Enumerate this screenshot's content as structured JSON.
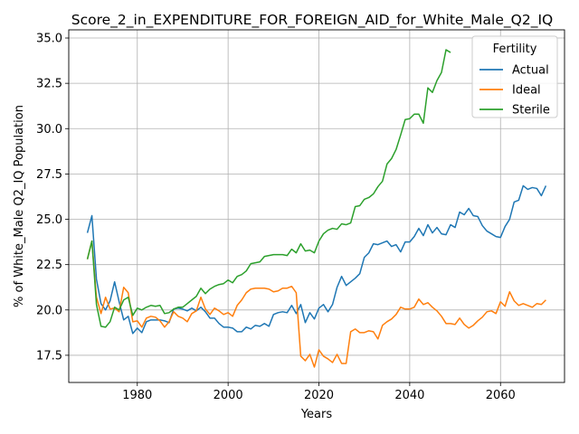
{
  "chart_data": {
    "type": "line",
    "title": "Score_2_in_EXPENDITURE_FOR_FOREIGN_AID_for_White_Male_Q2_IQ",
    "xlabel": "Years",
    "ylabel": "% of White_Male Q2_IQ Population",
    "xlim": [
      1964.9,
      2074.1
    ],
    "ylim": [
      16.0,
      35.45
    ],
    "xticks": [
      1980,
      2000,
      2020,
      2040,
      2060
    ],
    "yticks": [
      17.5,
      20.0,
      22.5,
      25.0,
      27.5,
      30.0,
      32.5,
      35.0
    ],
    "ytick_labels": [
      "17.5",
      "20.0",
      "22.5",
      "25.0",
      "27.5",
      "30.0",
      "32.5",
      "35.0"
    ],
    "grid": true,
    "legend": {
      "title": "Fertility",
      "position": "top-right"
    },
    "series": [
      {
        "name": "Actual",
        "color": "#1f77b4",
        "x": [
          1969,
          1970,
          1971,
          1972,
          1973,
          1974,
          1975,
          1976,
          1977,
          1978,
          1979,
          1980,
          1981,
          1982,
          1983,
          1984,
          1985,
          1986,
          1987,
          1988,
          1989,
          1990,
          1991,
          1992,
          1993,
          1994,
          1995,
          1996,
          1997,
          1998,
          1999,
          2000,
          2001,
          2002,
          2003,
          2004,
          2005,
          2006,
          2007,
          2008,
          2009,
          2010,
          2011,
          2012,
          2013,
          2014,
          2015,
          2016,
          2017,
          2018,
          2019,
          2020,
          2021,
          2022,
          2023,
          2024,
          2025,
          2026,
          2027,
          2028,
          2029,
          2030,
          2031,
          2032,
          2033,
          2034,
          2035,
          2036,
          2037,
          2038,
          2039,
          2040,
          2041,
          2042,
          2043,
          2044,
          2045,
          2046,
          2047,
          2048,
          2049,
          2050,
          2051,
          2052,
          2053,
          2054,
          2055,
          2056,
          2057,
          2058,
          2059,
          2060,
          2061,
          2062,
          2063,
          2064,
          2065,
          2066,
          2067,
          2068,
          2069,
          2070
        ],
        "values": [
          24.25,
          25.2,
          21.7,
          20.35,
          20.0,
          20.5,
          21.55,
          20.45,
          19.45,
          19.65,
          18.7,
          19.0,
          18.75,
          19.35,
          19.45,
          19.45,
          19.45,
          19.4,
          19.3,
          20.05,
          20.1,
          20.05,
          19.95,
          20.1,
          19.95,
          20.15,
          19.9,
          19.55,
          19.55,
          19.25,
          19.05,
          19.05,
          19.0,
          18.8,
          18.8,
          19.05,
          18.95,
          19.15,
          19.1,
          19.25,
          19.1,
          19.75,
          19.85,
          19.9,
          19.85,
          20.25,
          19.8,
          20.3,
          19.3,
          19.85,
          19.5,
          20.1,
          20.3,
          19.9,
          20.3,
          21.25,
          21.85,
          21.35,
          21.55,
          21.75,
          22.0,
          22.9,
          23.15,
          23.65,
          23.6,
          23.7,
          23.8,
          23.5,
          23.6,
          23.2,
          23.75,
          23.75,
          24.05,
          24.5,
          24.1,
          24.7,
          24.25,
          24.55,
          24.2,
          24.15,
          24.7,
          24.55,
          25.4,
          25.25,
          25.6,
          25.2,
          25.15,
          24.65,
          24.35,
          24.2,
          24.05,
          24.0,
          24.6,
          25.0,
          25.95,
          26.05,
          26.85,
          26.65,
          26.75,
          26.7,
          26.3,
          26.85
        ]
      },
      {
        "name": "Ideal",
        "color": "#ff7f0e",
        "x": [
          1969,
          1970,
          1971,
          1972,
          1973,
          1974,
          1975,
          1976,
          1977,
          1978,
          1979,
          1980,
          1981,
          1982,
          1983,
          1984,
          1985,
          1986,
          1987,
          1988,
          1989,
          1990,
          1991,
          1992,
          1993,
          1994,
          1995,
          1996,
          1997,
          1998,
          1999,
          2000,
          2001,
          2002,
          2003,
          2004,
          2005,
          2006,
          2007,
          2008,
          2009,
          2010,
          2011,
          2012,
          2013,
          2014,
          2015,
          2016,
          2017,
          2018,
          2019,
          2020,
          2021,
          2022,
          2023,
          2024,
          2025,
          2026,
          2027,
          2028,
          2029,
          2030,
          2031,
          2032,
          2033,
          2034,
          2035,
          2036,
          2037,
          2038,
          2039,
          2040,
          2041,
          2042,
          2043,
          2044,
          2045,
          2046,
          2047,
          2048,
          2049,
          2050,
          2051,
          2052,
          2053,
          2054,
          2055,
          2056,
          2057,
          2058,
          2059,
          2060,
          2061,
          2062,
          2063,
          2064,
          2065,
          2066,
          2067,
          2068,
          2069,
          2070
        ],
        "values": [
          22.8,
          23.8,
          20.7,
          19.8,
          20.7,
          20.05,
          20.1,
          19.9,
          21.25,
          20.95,
          19.35,
          19.4,
          19.05,
          19.55,
          19.65,
          19.6,
          19.4,
          19.05,
          19.35,
          19.9,
          19.65,
          19.55,
          19.35,
          19.8,
          19.95,
          20.7,
          20.05,
          19.75,
          20.1,
          19.95,
          19.75,
          19.85,
          19.65,
          20.25,
          20.55,
          20.95,
          21.15,
          21.2,
          21.2,
          21.2,
          21.15,
          21.0,
          21.05,
          21.2,
          21.2,
          21.3,
          20.95,
          17.45,
          17.2,
          17.55,
          16.85,
          17.8,
          17.45,
          17.3,
          17.1,
          17.55,
          17.05,
          17.05,
          18.8,
          18.95,
          18.75,
          18.75,
          18.85,
          18.8,
          18.4,
          19.15,
          19.35,
          19.5,
          19.75,
          20.15,
          20.05,
          20.05,
          20.15,
          20.6,
          20.3,
          20.4,
          20.15,
          19.95,
          19.65,
          19.25,
          19.25,
          19.2,
          19.55,
          19.2,
          19.0,
          19.15,
          19.4,
          19.6,
          19.9,
          19.95,
          19.8,
          20.45,
          20.2,
          21.0,
          20.5,
          20.25,
          20.35,
          20.25,
          20.15,
          20.35,
          20.3,
          20.55
        ]
      },
      {
        "name": "Sterile",
        "color": "#2ca02c",
        "x": [
          1969,
          1970,
          1971,
          1972,
          1973,
          1974,
          1975,
          1976,
          1977,
          1978,
          1979,
          1980,
          1981,
          1982,
          1983,
          1984,
          1985,
          1986,
          1987,
          1988,
          1989,
          1990,
          1991,
          1992,
          1993,
          1994,
          1995,
          1996,
          1997,
          1998,
          1999,
          2000,
          2001,
          2002,
          2003,
          2004,
          2005,
          2006,
          2007,
          2008,
          2009,
          2010,
          2011,
          2012,
          2013,
          2014,
          2015,
          2016,
          2017,
          2018,
          2019,
          2020,
          2021,
          2022,
          2023,
          2024,
          2025,
          2026,
          2027,
          2028,
          2029,
          2030,
          2031,
          2032,
          2033,
          2034,
          2035,
          2036,
          2037,
          2038,
          2039,
          2040,
          2041,
          2042,
          2043,
          2044,
          2045,
          2046,
          2047,
          2048,
          2049
        ],
        "values": [
          22.8,
          23.8,
          20.3,
          19.1,
          19.05,
          19.35,
          20.15,
          20.0,
          20.55,
          20.7,
          19.7,
          20.1,
          20.0,
          20.15,
          20.25,
          20.2,
          20.25,
          19.8,
          19.85,
          20.05,
          20.15,
          20.15,
          20.35,
          20.55,
          20.75,
          21.2,
          20.9,
          21.15,
          21.3,
          21.4,
          21.45,
          21.65,
          21.5,
          21.85,
          21.95,
          22.15,
          22.55,
          22.6,
          22.65,
          22.95,
          23.0,
          23.05,
          23.05,
          23.05,
          23.0,
          23.35,
          23.15,
          23.65,
          23.25,
          23.3,
          23.15,
          23.8,
          24.2,
          24.4,
          24.5,
          24.45,
          24.75,
          24.7,
          24.8,
          25.7,
          25.75,
          26.1,
          26.2,
          26.4,
          26.8,
          27.1,
          28.05,
          28.35,
          28.85,
          29.65,
          30.5,
          30.55,
          30.8,
          30.8,
          30.3,
          32.25,
          32.0,
          32.65,
          33.1,
          34.35,
          34.2
        ]
      }
    ]
  }
}
